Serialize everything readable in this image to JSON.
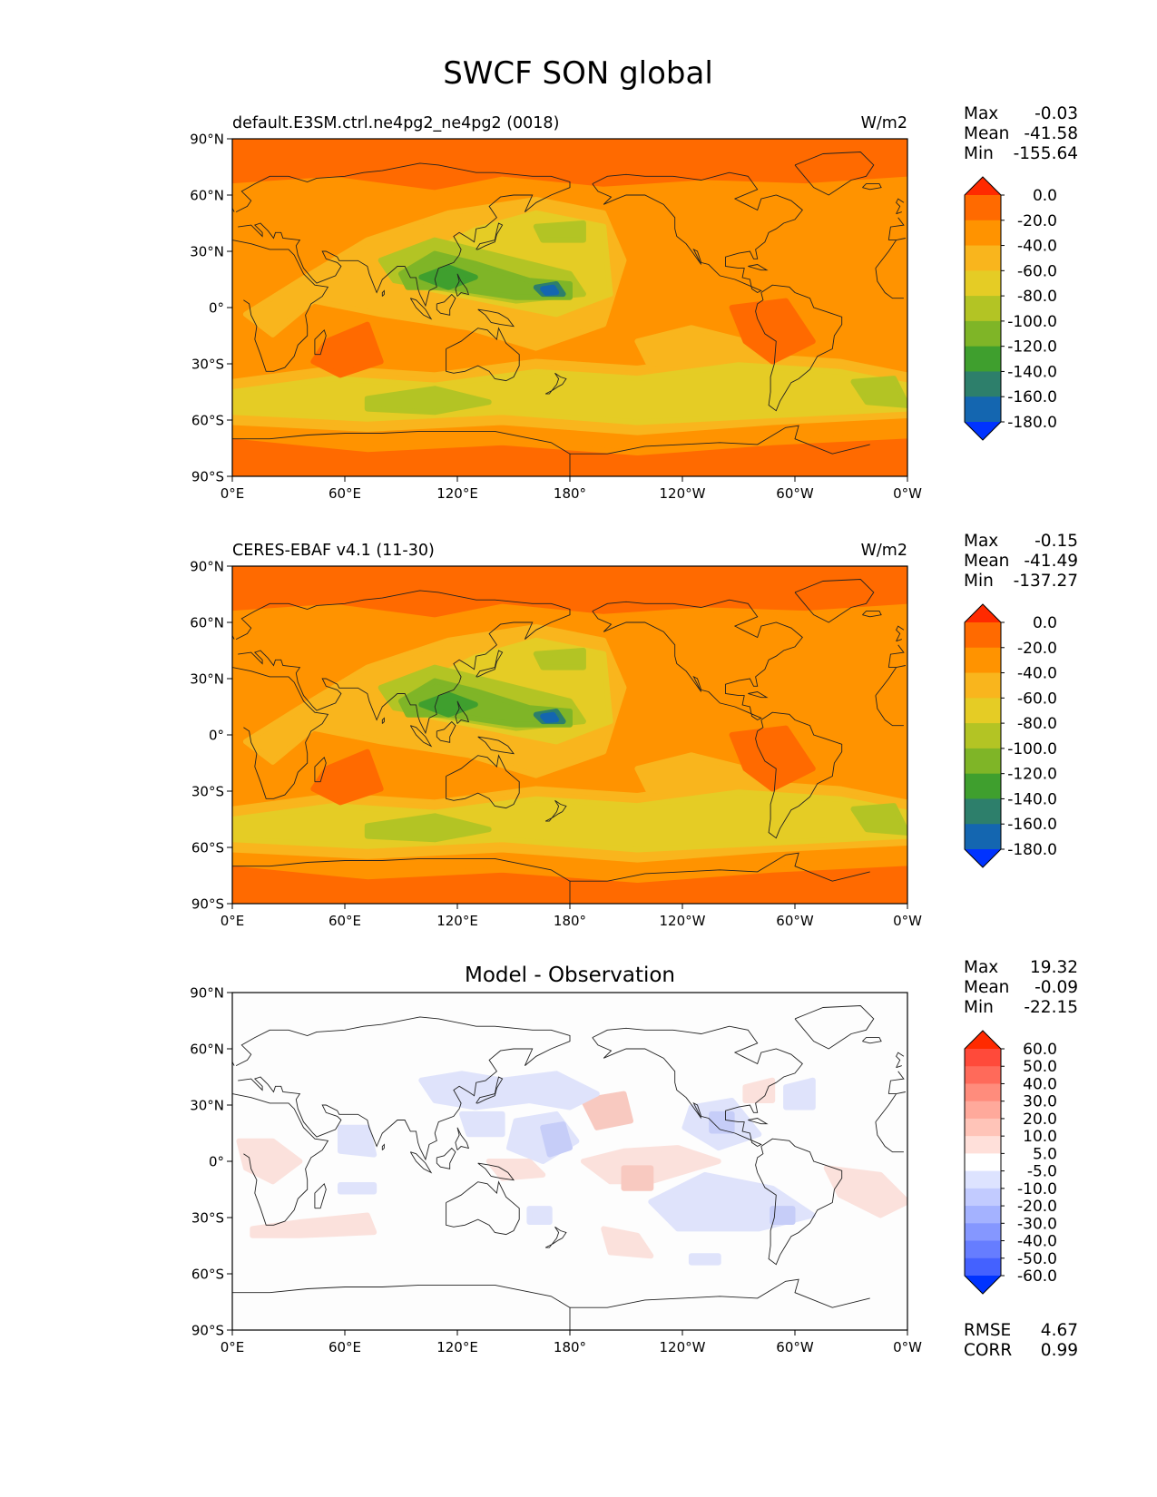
{
  "title": "SWCF SON global",
  "lat_ticks": [
    "90°N",
    "60°N",
    "30°N",
    "0°",
    "30°S",
    "60°S",
    "90°S"
  ],
  "lon_ticks": [
    "0°E",
    "60°E",
    "120°E",
    "180°",
    "120°W",
    "60°W",
    "0°W"
  ],
  "panels": [
    {
      "title_left": "default.E3SM.ctrl.ne4pg2_ne4pg2 (0018)",
      "title_center": "",
      "units": "W/m2",
      "stats": [
        [
          "Max",
          "-0.03"
        ],
        [
          "Mean",
          "-41.58"
        ],
        [
          "Min",
          "-155.64"
        ]
      ],
      "colorbar": {
        "labels": [
          "0.0",
          "-20.0",
          "-40.0",
          "-60.0",
          "-80.0",
          "-100.0",
          "-120.0",
          "-140.0",
          "-160.0",
          "-180.0"
        ],
        "colors": [
          "#ff2a00",
          "#ff6a00",
          "#ff9300",
          "#f9b51d",
          "#e5cc25",
          "#b3c424",
          "#7fb527",
          "#3f9f2e",
          "#2d7f6b",
          "#1466b0",
          "#0033ff"
        ]
      },
      "field_colors": {
        "bg": "#ff6a00",
        "o1": "#ff9300",
        "o2": "#f9b51d",
        "y": "#e5cc25",
        "g1": "#b3c424",
        "g2": "#7fb527",
        "g3": "#3f9f2e",
        "b": "#2d7f6b",
        "bb": "#1466b0"
      }
    },
    {
      "title_left": "CERES-EBAF v4.1 (11-30)",
      "title_center": "",
      "units": "W/m2",
      "stats": [
        [
          "Max",
          "-0.15"
        ],
        [
          "Mean",
          "-41.49"
        ],
        [
          "Min",
          "-137.27"
        ]
      ],
      "colorbar": {
        "labels": [
          "0.0",
          "-20.0",
          "-40.0",
          "-60.0",
          "-80.0",
          "-100.0",
          "-120.0",
          "-140.0",
          "-160.0",
          "-180.0"
        ],
        "colors": [
          "#ff2a00",
          "#ff6a00",
          "#ff9300",
          "#f9b51d",
          "#e5cc25",
          "#b3c424",
          "#7fb527",
          "#3f9f2e",
          "#2d7f6b",
          "#1466b0",
          "#0033ff"
        ]
      },
      "field_colors": {
        "bg": "#ff6a00",
        "o1": "#ff9300",
        "o2": "#f9b51d",
        "y": "#e5cc25",
        "g1": "#b3c424",
        "g2": "#7fb527",
        "g3": "#3f9f2e",
        "b": "#2d7f6b",
        "bb": "#1466b0"
      }
    },
    {
      "title_left": "",
      "title_center": "Model - Observation",
      "units": "",
      "stats": [
        [
          "Max",
          "19.32"
        ],
        [
          "Mean",
          "-0.09"
        ],
        [
          "Min",
          "-22.15"
        ]
      ],
      "colorbar": {
        "labels": [
          "60.0",
          "50.0",
          "40.0",
          "30.0",
          "20.0",
          "10.0",
          "5.0",
          "-5.0",
          "-10.0",
          "-20.0",
          "-30.0",
          "-40.0",
          "-50.0",
          "-60.0"
        ],
        "colors": [
          "#ff2a00",
          "#ff4a3a",
          "#ff6a5a",
          "#ff8c7c",
          "#ffa99b",
          "#ffc4b8",
          "#ffe0da",
          "#ffffff",
          "#dde3ff",
          "#c2cbff",
          "#a4b2ff",
          "#8597ff",
          "#667dff",
          "#4461ff",
          "#0033ff"
        ]
      },
      "field_colors": {
        "bg": "#fdfdfd",
        "r1": "#fbe1dc",
        "r2": "#f8c9c0",
        "b1": "#dfe3fb",
        "b2": "#c6cdf8"
      },
      "bottom_stats": [
        [
          "RMSE",
          "4.67"
        ],
        [
          "CORR",
          "0.99"
        ]
      ]
    }
  ]
}
